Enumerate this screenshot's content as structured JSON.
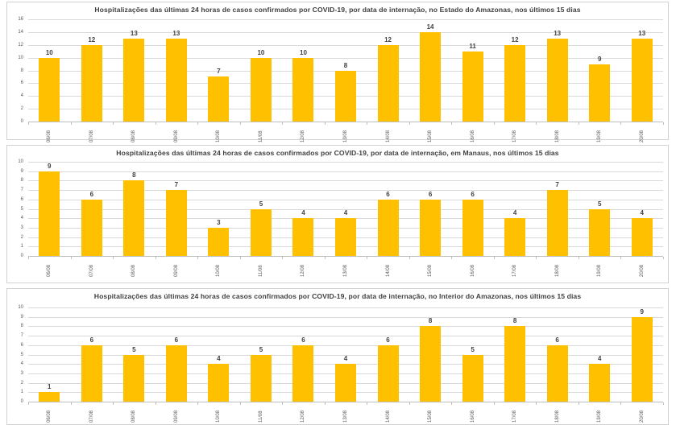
{
  "page": {
    "background": "#ffffff",
    "panel_border": "#d2d2d2"
  },
  "colors": {
    "bar": "#FFC000",
    "gridline": "#d9d9d9",
    "axis": "#bfbfbf",
    "title_text": "#3f3f3f",
    "tick_text": "#595959",
    "data_label_text": "#404040"
  },
  "chart_data": [
    {
      "type": "bar",
      "title": "Hospitalizações das últimas 24 horas de casos confirmados por COVID-19, por data de internação, no Estado do Amazonas, nos últimos 15 dias",
      "categories": [
        "06/08",
        "07/08",
        "08/08",
        "09/08",
        "10/08",
        "11/08",
        "12/08",
        "13/08",
        "14/08",
        "15/08",
        "16/08",
        "17/08",
        "18/08",
        "19/08",
        "20/08"
      ],
      "values": [
        10,
        12,
        13,
        13,
        7,
        10,
        10,
        8,
        12,
        14,
        11,
        12,
        13,
        9,
        13
      ],
      "xlabel": "",
      "ylabel": "",
      "ylim": [
        0,
        16
      ],
      "ytick_step": 2,
      "grid": true,
      "data_labels": true,
      "legend": "none",
      "bar_color": "#FFC000"
    },
    {
      "type": "bar",
      "title": "Hospitalizações das últimas 24 horas de casos confirmados por COVID-19, por data de internação, em Manaus, nos últimos 15 dias",
      "categories": [
        "06/08",
        "07/08",
        "08/08",
        "09/08",
        "10/08",
        "11/08",
        "12/08",
        "13/08",
        "14/08",
        "15/08",
        "16/08",
        "17/08",
        "18/08",
        "19/08",
        "20/08"
      ],
      "values": [
        9,
        6,
        8,
        7,
        3,
        5,
        4,
        4,
        6,
        6,
        6,
        4,
        7,
        5,
        4
      ],
      "xlabel": "",
      "ylabel": "",
      "ylim": [
        0,
        10
      ],
      "ytick_step": 1,
      "grid": true,
      "data_labels": true,
      "legend": "none",
      "bar_color": "#FFC000"
    },
    {
      "type": "bar",
      "title": "Hospitalizações das últimas 24 horas de casos confirmados por COVID-19, por data de internação, no Interior do Amazonas, nos últimos 15 dias",
      "categories": [
        "06/08",
        "07/08",
        "08/08",
        "09/08",
        "10/08",
        "11/08",
        "12/08",
        "13/08",
        "14/08",
        "15/08",
        "16/08",
        "17/08",
        "18/08",
        "19/08",
        "20/08"
      ],
      "values": [
        1,
        6,
        5,
        6,
        4,
        5,
        6,
        4,
        6,
        8,
        5,
        8,
        6,
        4,
        9
      ],
      "xlabel": "",
      "ylabel": "",
      "ylim": [
        0,
        10
      ],
      "ytick_step": 1,
      "grid": true,
      "data_labels": true,
      "legend": "none",
      "bar_color": "#FFC000"
    }
  ]
}
